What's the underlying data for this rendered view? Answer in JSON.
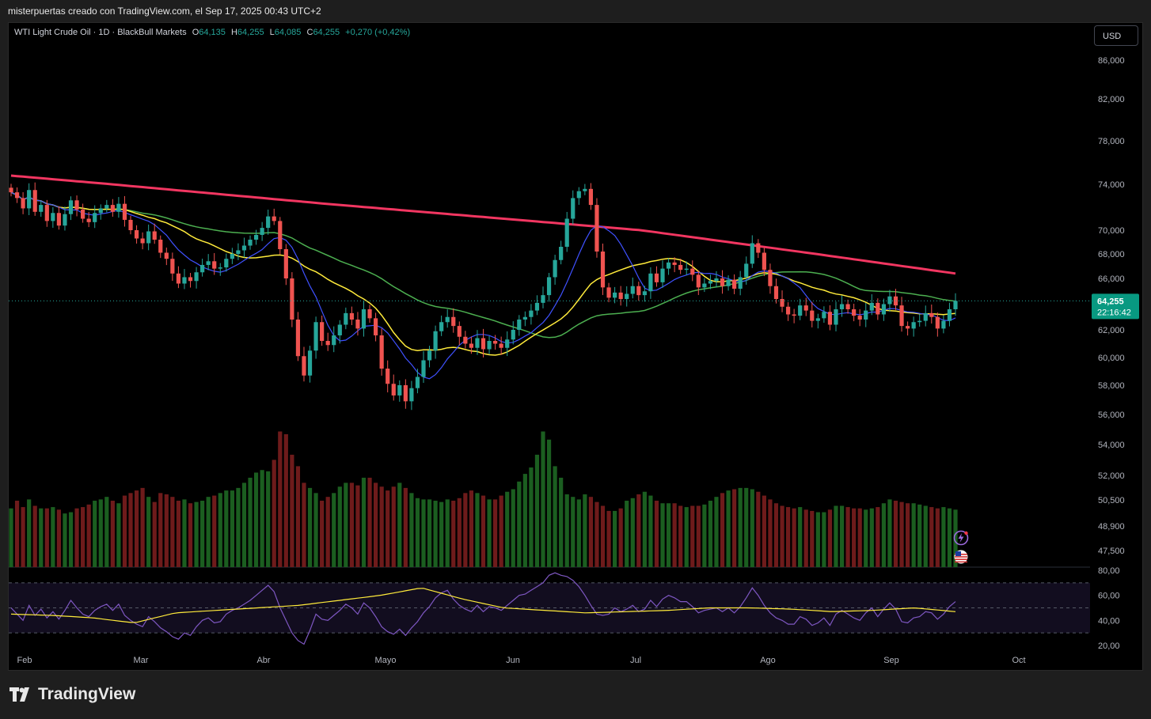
{
  "header": {
    "attribution": "misterpuertas creado con TradingView.com, el Sep 17, 2025 00:43 UTC+2"
  },
  "legend": {
    "symbol": "WTI Light Crude Oil · 1D · BlackBull Markets",
    "o_label": "O",
    "o_value": "64,135",
    "h_label": "H",
    "h_value": "64,255",
    "l_label": "L",
    "l_value": "64,085",
    "c_label": "C",
    "c_value": "64,255",
    "change": "+0,270 (+0,42%)"
  },
  "currency_button": "USD",
  "brand": "TradingView",
  "colors": {
    "up": "#26a69a",
    "down": "#ef5350",
    "vol_up": "#1b5e20",
    "vol_down": "#6e1b1b",
    "ma200": "#f23661",
    "ma50": "#4caf50",
    "ma20": "#ffeb3b",
    "ma9": "#3f51ff",
    "rsi": "#7e57c2",
    "rsi_ma": "#ffeb3b",
    "badge": "#089981"
  },
  "icons": [
    "lightning-icon",
    "us-flag-icon",
    "tradingview-logo-icon"
  ],
  "chart_data": {
    "type": "candlestick",
    "y_ticks": [
      "86,000",
      "82,000",
      "78,000",
      "74,000",
      "70,000",
      "68,000",
      "66,000",
      "62,000",
      "60,000",
      "58,000",
      "56,000",
      "54,000",
      "52,000",
      "50,500",
      "48,900",
      "47,500"
    ],
    "y_tick_values": [
      86,
      82,
      78,
      74,
      70,
      68,
      66,
      62,
      60,
      58,
      56,
      54,
      52,
      50.5,
      48.9,
      47.5
    ],
    "x_labels": [
      "Feb",
      "Mar",
      "Abr",
      "Mayo",
      "Jun",
      "Jul",
      "Ago",
      "Sep",
      "Oct"
    ],
    "price_badge": {
      "value": "64,255",
      "countdown": "22:16:42"
    },
    "rsi_ticks": [
      "80,00",
      "60,00",
      "40,00",
      "20,00"
    ],
    "rsi_tick_values": [
      80,
      60,
      40,
      20
    ],
    "rsi_bands": [
      70,
      50,
      30
    ],
    "closes": [
      73.3,
      72.8,
      71.9,
      73.5,
      71.6,
      72.2,
      70.8,
      71.5,
      70.4,
      71.4,
      72.6,
      71.8,
      71.0,
      70.7,
      71.5,
      71.9,
      72.2,
      71.6,
      72.3,
      70.9,
      70.0,
      69.3,
      68.9,
      69.9,
      69.2,
      68.1,
      67.6,
      66.4,
      65.6,
      66.1,
      65.8,
      66.5,
      67.1,
      67.4,
      66.8,
      66.9,
      67.6,
      68.0,
      68.3,
      68.7,
      69.2,
      69.6,
      70.2,
      71.2,
      70.8,
      68.4,
      66.0,
      62.8,
      60.1,
      58.7,
      60.5,
      62.6,
      61.2,
      60.9,
      61.6,
      62.4,
      63.3,
      62.8,
      62.1,
      63.6,
      62.9,
      61.6,
      59.2,
      58.1,
      57.3,
      58.0,
      56.9,
      57.8,
      58.6,
      59.8,
      60.5,
      61.9,
      62.6,
      63.0,
      62.3,
      61.5,
      61.0,
      60.7,
      61.4,
      60.6,
      61.2,
      61.0,
      60.7,
      61.3,
      62.0,
      62.8,
      63.0,
      63.5,
      64.1,
      64.7,
      66.1,
      67.5,
      68.6,
      71.0,
      72.8,
      73.4,
      73.6,
      72.2,
      68.2,
      65.3,
      64.5,
      64.9,
      64.4,
      64.8,
      65.4,
      64.7,
      65.0,
      66.4,
      65.7,
      66.8,
      67.3,
      67.1,
      66.7,
      66.8,
      66.3,
      65.3,
      65.6,
      65.8,
      66.0,
      65.4,
      65.9,
      65.2,
      66.1,
      67.2,
      68.9,
      68.1,
      66.7,
      65.4,
      64.4,
      63.8,
      63.2,
      63.1,
      63.9,
      63.5,
      62.7,
      62.9,
      63.4,
      62.4,
      63.6,
      64.0,
      63.6,
      63.1,
      62.8,
      63.5,
      64.1,
      63.2,
      64.0,
      64.6,
      63.9,
      62.3,
      62.1,
      62.6,
      62.7,
      63.3,
      63.0,
      62.1,
      62.7,
      63.6,
      64.255
    ],
    "ma200": [
      74.8,
      72.3,
      70.0,
      66.4
    ],
    "ma50": [
      72.0,
      72.5,
      63.6,
      64.0
    ],
    "ma20": [
      73.0,
      68.5,
      60.8,
      63.3
    ],
    "ma9": [
      73.0,
      67.5,
      59.8,
      63.4
    ],
    "volume_levels": [
      0.46,
      0.52,
      0.47,
      0.53,
      0.48,
      0.46,
      0.46,
      0.47,
      0.45,
      0.42,
      0.43,
      0.46,
      0.47,
      0.49,
      0.52,
      0.53,
      0.55,
      0.52,
      0.5,
      0.56,
      0.58,
      0.6,
      0.62,
      0.55,
      0.51,
      0.58,
      0.57,
      0.55,
      0.52,
      0.53,
      0.5,
      0.51,
      0.52,
      0.55,
      0.56,
      0.58,
      0.6,
      0.6,
      0.62,
      0.66,
      0.7,
      0.74,
      0.76,
      0.75,
      0.84,
      1.0,
      0.98,
      0.88,
      0.79,
      0.66,
      0.62,
      0.58,
      0.52,
      0.55,
      0.58,
      0.63,
      0.66,
      0.66,
      0.64,
      0.7,
      0.7,
      0.66,
      0.63,
      0.6,
      0.63,
      0.66,
      0.62,
      0.58,
      0.54,
      0.53,
      0.53,
      0.52,
      0.51,
      0.53,
      0.52,
      0.54,
      0.58,
      0.6,
      0.58,
      0.56,
      0.53,
      0.53,
      0.56,
      0.59,
      0.61,
      0.67,
      0.73,
      0.78,
      0.88,
      1.0,
      0.94,
      0.79,
      0.7,
      0.57,
      0.55,
      0.53,
      0.57,
      0.55,
      0.51,
      0.48,
      0.44,
      0.44,
      0.46,
      0.52,
      0.54,
      0.57,
      0.59,
      0.56,
      0.52,
      0.5,
      0.5,
      0.5,
      0.48,
      0.47,
      0.48,
      0.48,
      0.49,
      0.52,
      0.55,
      0.58,
      0.6,
      0.61,
      0.62,
      0.62,
      0.61,
      0.59,
      0.56,
      0.53,
      0.5,
      0.48,
      0.47,
      0.46,
      0.47,
      0.45,
      0.44,
      0.43,
      0.43,
      0.45,
      0.48,
      0.48,
      0.47,
      0.46,
      0.46,
      0.45,
      0.46,
      0.47,
      0.5,
      0.53,
      0.52,
      0.51,
      0.5,
      0.5,
      0.49,
      0.48,
      0.47,
      0.46,
      0.47,
      0.46,
      0.45,
      0.42,
      0.44,
      0.46
    ],
    "rsi": [
      50,
      45,
      40,
      52,
      44,
      49,
      42,
      47,
      41,
      48,
      56,
      50,
      45,
      43,
      48,
      51,
      53,
      48,
      53,
      44,
      40,
      37,
      35,
      43,
      39,
      34,
      31,
      27,
      25,
      30,
      28,
      35,
      40,
      42,
      38,
      39,
      45,
      48,
      50,
      53,
      56,
      60,
      64,
      68,
      63,
      50,
      40,
      30,
      24,
      21,
      32,
      45,
      41,
      40,
      44,
      48,
      53,
      50,
      45,
      54,
      50,
      43,
      35,
      31,
      29,
      33,
      28,
      34,
      39,
      46,
      51,
      58,
      62,
      64,
      57,
      52,
      49,
      47,
      52,
      47,
      51,
      50,
      48,
      52,
      56,
      60,
      61,
      64,
      67,
      70,
      76,
      78,
      76,
      75,
      72,
      67,
      60,
      52,
      45,
      44,
      45,
      50,
      47,
      49,
      52,
      47,
      49,
      56,
      51,
      57,
      60,
      58,
      55,
      55,
      51,
      46,
      48,
      49,
      50,
      47,
      50,
      46,
      51,
      58,
      66,
      60,
      52,
      46,
      42,
      40,
      37,
      37,
      43,
      41,
      36,
      38,
      42,
      36,
      45,
      48,
      45,
      42,
      40,
      46,
      50,
      43,
      49,
      54,
      49,
      39,
      38,
      42,
      43,
      47,
      46,
      41,
      45,
      51,
      55
    ],
    "rsi_ma_levels": [
      45,
      44,
      42,
      38,
      46,
      48,
      50,
      52,
      56,
      60,
      66,
      57,
      50,
      48,
      46,
      47,
      48,
      50,
      50,
      49,
      47,
      48,
      50,
      47
    ]
  }
}
